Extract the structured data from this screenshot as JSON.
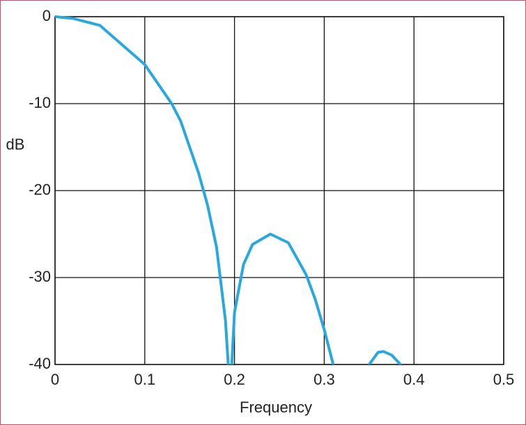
{
  "chart_data": {
    "type": "line",
    "x_label": "Frequency",
    "y_label": "dB",
    "x": [
      0,
      0.02,
      0.05,
      0.08,
      0.1,
      0.12,
      0.13,
      0.14,
      0.15,
      0.16,
      0.17,
      0.18,
      0.19,
      0.193,
      null,
      0.197,
      0.2,
      0.21,
      0.22,
      0.24,
      0.26,
      0.28,
      0.29,
      0.3,
      0.31,
      null,
      0.35,
      0.36,
      0.366,
      0.375,
      0.385
    ],
    "values": [
      0,
      -0.2,
      -1,
      -3.7,
      -5.5,
      -8.5,
      -10,
      -12,
      -15,
      -18,
      -21.7,
      -26.5,
      -35,
      -40,
      null,
      -40,
      -34,
      -28.5,
      -26.2,
      -25,
      -26,
      -29.7,
      -32.5,
      -36,
      -40,
      null,
      -40,
      -38.6,
      -38.5,
      -38.9,
      -40
    ],
    "color": "#29a8e0",
    "xlim": [
      0,
      0.5
    ],
    "xticks": [
      0,
      0.1,
      0.2,
      0.3,
      0.4,
      0.5
    ],
    "ylim": [
      -40,
      0
    ],
    "yticks": [
      0,
      -10,
      -20,
      -30,
      -40
    ],
    "grid": true
  }
}
